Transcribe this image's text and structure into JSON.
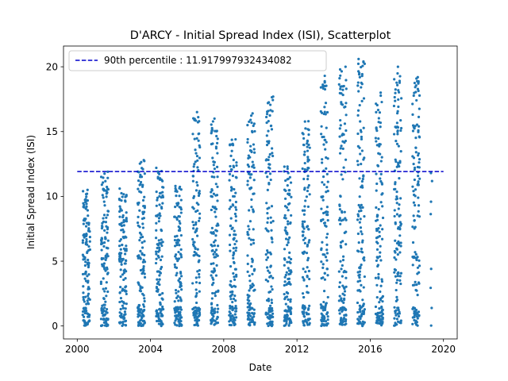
{
  "chart_data": {
    "type": "scatter",
    "title": "D'ARCY - Initial Spread Index (ISI), Scatterplot",
    "xlabel": "Date",
    "ylabel": "Initial Spread Index (ISI)",
    "xlim": [
      1999.25,
      2020.75
    ],
    "ylim": [
      -1.0,
      21.6
    ],
    "x_ticks": [
      2000,
      2004,
      2008,
      2012,
      2016,
      2020
    ],
    "x_tick_labels": [
      "2000",
      "2004",
      "2008",
      "2012",
      "2016",
      "2020"
    ],
    "y_ticks": [
      0,
      5,
      10,
      15,
      20
    ],
    "y_tick_labels": [
      "0",
      "5",
      "10",
      "15",
      "20"
    ],
    "point_color": "#1f77b4",
    "reference_line": {
      "label": "90th percentile : 11.917997932434082",
      "value": 11.917997932434082,
      "x_start": 2000.0,
      "x_end": 2020.0,
      "color": "#0000cc",
      "style": "dashed"
    },
    "legend_position": "top-left",
    "seasons": [
      {
        "year": 2000,
        "start": 2000.3,
        "end": 2000.7,
        "max": 10.5
      },
      {
        "year": 2001,
        "start": 2001.3,
        "end": 2001.7,
        "max": 11.9
      },
      {
        "year": 2002,
        "start": 2002.3,
        "end": 2002.7,
        "max": 10.6
      },
      {
        "year": 2003,
        "start": 2003.3,
        "end": 2003.7,
        "max": 12.8
      },
      {
        "year": 2004,
        "start": 2004.3,
        "end": 2004.7,
        "max": 12.2
      },
      {
        "year": 2005,
        "start": 2005.3,
        "end": 2005.7,
        "max": 10.8
      },
      {
        "year": 2006,
        "start": 2006.3,
        "end": 2006.7,
        "max": 16.5
      },
      {
        "year": 2007,
        "start": 2007.3,
        "end": 2007.7,
        "max": 16.0
      },
      {
        "year": 2008,
        "start": 2008.3,
        "end": 2008.7,
        "max": 14.4
      },
      {
        "year": 2009,
        "start": 2009.3,
        "end": 2009.7,
        "max": 16.4
      },
      {
        "year": 2010,
        "start": 2010.3,
        "end": 2010.7,
        "max": 17.7
      },
      {
        "year": 2011,
        "start": 2011.3,
        "end": 2011.7,
        "max": 12.3
      },
      {
        "year": 2012,
        "start": 2012.3,
        "end": 2012.7,
        "max": 15.8
      },
      {
        "year": 2013,
        "start": 2013.3,
        "end": 2013.7,
        "max": 19.3
      },
      {
        "year": 2014,
        "start": 2014.3,
        "end": 2014.7,
        "max": 20.0
      },
      {
        "year": 2015,
        "start": 2015.3,
        "end": 2015.7,
        "max": 20.6
      },
      {
        "year": 2016,
        "start": 2016.3,
        "end": 2016.7,
        "max": 18.0
      },
      {
        "year": 2017,
        "start": 2017.3,
        "end": 2017.7,
        "max": 20.0
      },
      {
        "year": 2018,
        "start": 2018.3,
        "end": 2018.7,
        "max": 19.2
      },
      {
        "year": 2019,
        "start": 2019.3,
        "end": 2019.4,
        "max": 11.8
      }
    ]
  }
}
